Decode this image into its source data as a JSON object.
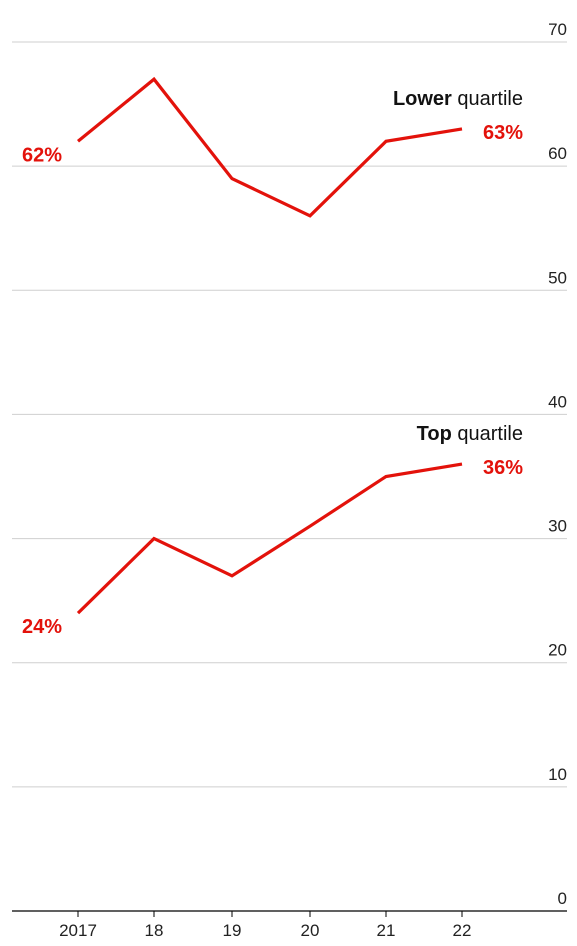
{
  "chart_data": {
    "type": "line",
    "categories": [
      "2017",
      "18",
      "19",
      "20",
      "21",
      "22"
    ],
    "ylim": [
      0,
      70
    ],
    "yticks": [
      "0",
      "10",
      "20",
      "30",
      "40",
      "50",
      "60",
      "70"
    ],
    "series": [
      {
        "name_bold": "Lower",
        "name_rest": " quartile",
        "values": [
          62,
          67,
          59,
          56,
          62,
          63
        ],
        "start_label": "62%",
        "end_label": "63%",
        "color": "#e3120b"
      },
      {
        "name_bold": "Top",
        "name_rest": " quartile",
        "values": [
          24,
          30,
          27,
          31,
          35,
          36
        ],
        "start_label": "24%",
        "end_label": "36%",
        "color": "#e3120b"
      }
    ],
    "grid": true
  }
}
